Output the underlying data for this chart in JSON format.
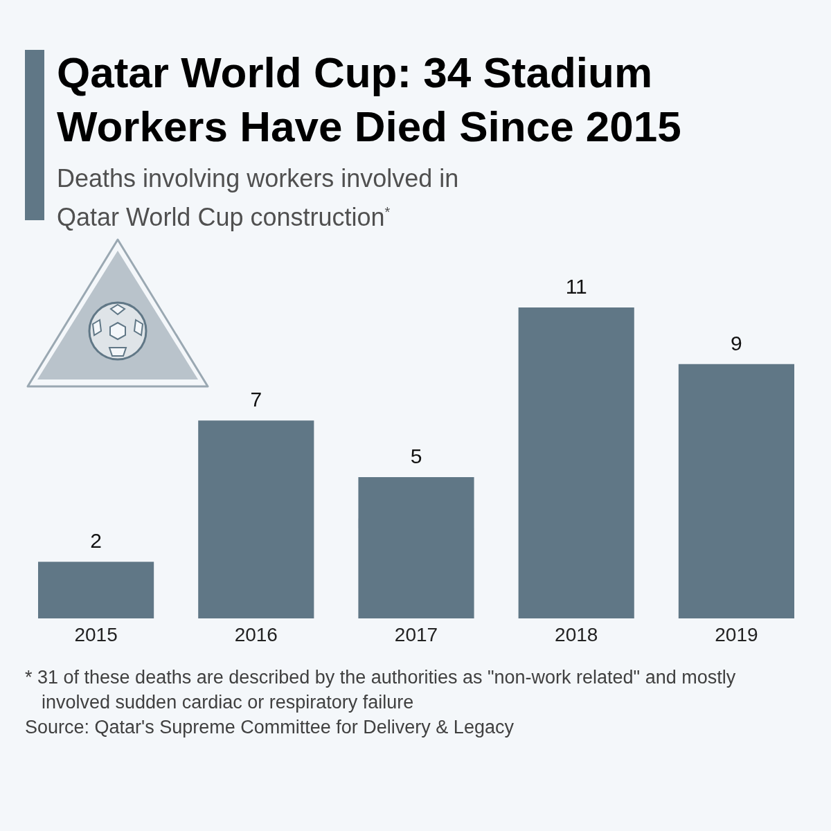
{
  "chart_data": {
    "type": "bar",
    "title": "Qatar World Cup: 34 Stadium Workers Have Died Since 2015",
    "subtitle": "Deaths involving workers involved in Qatar World Cup construction$^{*}$",
    "categories": [
      "2015",
      "2016",
      "2017",
      "2018",
      "2019"
    ],
    "values": [
      2,
      7,
      5,
      11,
      9
    ],
    "color": "#607786",
    "data_labels": true,
    "annotations": [
      "* 31 of these deaths are described by the authorities as \"non-work related\" and mostly involved sudden cardiac or respiratory failure",
      "Source: Qatar's Supreme Committee for Delivery & Legacy"
    ]
  }
}
